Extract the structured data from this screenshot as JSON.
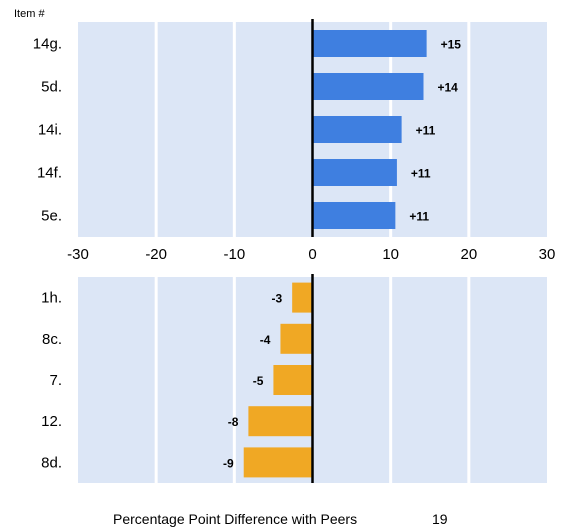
{
  "header_label": "Item #",
  "footer_title": "Percentage Point Difference with Peers",
  "page_number": "19",
  "colors": {
    "positive": "#3F7FE0",
    "negative": "#F0A824",
    "plot_bg": "#DCE6F6",
    "grid": "#ffffff",
    "zero_line": "#000000"
  },
  "chart_data": [
    {
      "type": "bar",
      "orientation": "horizontal",
      "categories": [
        "14g.",
        "5d.",
        "14i.",
        "14f.",
        "5e."
      ],
      "values": [
        14.6,
        14.2,
        11.4,
        10.8,
        10.6
      ],
      "data_labels": [
        "+15",
        "+14",
        "+11",
        "+11",
        "+11"
      ],
      "xlim": [
        -30,
        30
      ],
      "xticks": [
        "-30",
        "-20",
        "-10",
        "0",
        "10",
        "20",
        "30"
      ],
      "grid": true
    },
    {
      "type": "bar",
      "orientation": "horizontal",
      "categories": [
        "1h.",
        "8c.",
        "7.",
        "12.",
        "8d."
      ],
      "values": [
        -2.6,
        -4.1,
        -5.0,
        -8.2,
        -8.8
      ],
      "data_labels": [
        "-3",
        "-4",
        "-5",
        "-8",
        "-9"
      ],
      "xlim": [
        -30,
        30
      ],
      "grid": true
    }
  ]
}
